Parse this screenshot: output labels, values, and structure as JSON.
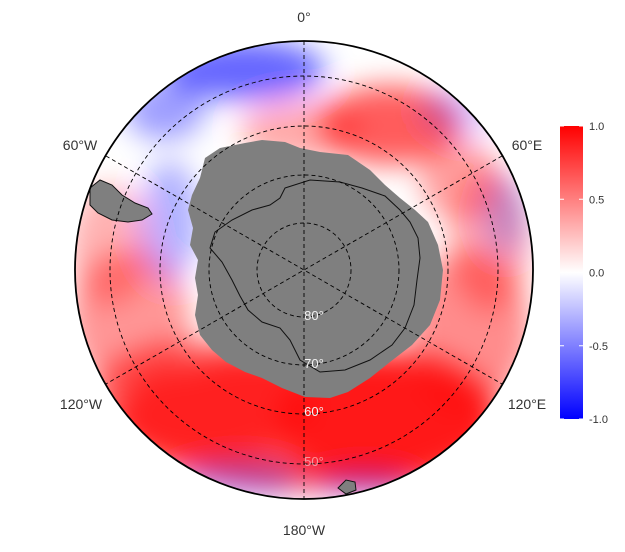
{
  "map": {
    "projection": "south-polar-stereographic",
    "longitude_labels": {
      "top": "0°",
      "upper_left": "60°W",
      "upper_right": "60°E",
      "lower_left": "120°W",
      "lower_right": "120°E",
      "bottom": "180°W"
    },
    "latitude_labels": [
      "80°",
      "70°",
      "60°",
      "50°"
    ],
    "colors": {
      "negative": "#0000ff",
      "zero": "#ffffff",
      "positive": "#ff0000",
      "land": "#7f7f7f",
      "grid": "#000000"
    }
  },
  "colorbar": {
    "max": 1.0,
    "min": -1.0,
    "ticks": [
      {
        "value": 1.0,
        "label": "1.0"
      },
      {
        "value": 0.5,
        "label": "0.5"
      },
      {
        "value": 0.0,
        "label": "0.0"
      },
      {
        "value": -0.5,
        "label": "-0.5"
      },
      {
        "value": -1.0,
        "label": "-1.0"
      }
    ]
  }
}
